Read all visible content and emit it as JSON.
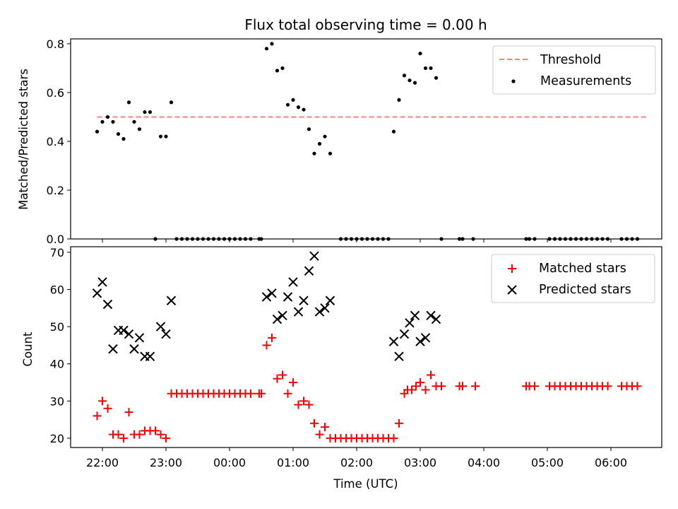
{
  "title": "Flux total observing time = 0.00 h",
  "chart_data": [
    {
      "type": "scatter",
      "ylabel": "Matched/Predicted stars",
      "ylim": [
        0,
        0.82
      ],
      "yticks": [
        0.0,
        0.2,
        0.4,
        0.6,
        0.8
      ],
      "xlim": [
        "21:30",
        "06:48"
      ],
      "legend": "top-right",
      "threshold": {
        "name": "Threshold",
        "value": 0.5,
        "x_range": [
          "21:55",
          "06:35"
        ],
        "color": "#ff7f7f"
      },
      "series": [
        {
          "name": "Measurements",
          "color": "#000000",
          "points": [
            [
              "21:55",
              0.44
            ],
            [
              "22:00",
              0.48
            ],
            [
              "22:05",
              0.5
            ],
            [
              "22:10",
              0.48
            ],
            [
              "22:15",
              0.43
            ],
            [
              "22:20",
              0.41
            ],
            [
              "22:25",
              0.56
            ],
            [
              "22:30",
              0.48
            ],
            [
              "22:35",
              0.45
            ],
            [
              "22:40",
              0.52
            ],
            [
              "22:45",
              0.52
            ],
            [
              "22:55",
              0.42
            ],
            [
              "23:00",
              0.42
            ],
            [
              "23:05",
              0.56
            ],
            [
              "22:50",
              0.0
            ],
            [
              "23:10",
              0.0
            ],
            [
              "23:15",
              0.0
            ],
            [
              "23:20",
              0.0
            ],
            [
              "23:25",
              0.0
            ],
            [
              "23:30",
              0.0
            ],
            [
              "23:35",
              0.0
            ],
            [
              "23:40",
              0.0
            ],
            [
              "23:45",
              0.0
            ],
            [
              "23:50",
              0.0
            ],
            [
              "23:55",
              0.0
            ],
            [
              "00:00",
              0.0
            ],
            [
              "00:05",
              0.0
            ],
            [
              "00:10",
              0.0
            ],
            [
              "00:15",
              0.0
            ],
            [
              "00:20",
              0.0
            ],
            [
              "00:28",
              0.0
            ],
            [
              "00:30",
              0.0
            ],
            [
              "00:35",
              0.78
            ],
            [
              "00:40",
              0.8
            ],
            [
              "00:45",
              0.69
            ],
            [
              "00:50",
              0.7
            ],
            [
              "00:55",
              0.55
            ],
            [
              "01:00",
              0.57
            ],
            [
              "01:05",
              0.54
            ],
            [
              "01:10",
              0.53
            ],
            [
              "01:15",
              0.45
            ],
            [
              "01:20",
              0.35
            ],
            [
              "01:25",
              0.39
            ],
            [
              "01:30",
              0.42
            ],
            [
              "01:35",
              0.35
            ],
            [
              "01:45",
              0.0
            ],
            [
              "01:50",
              0.0
            ],
            [
              "01:55",
              0.0
            ],
            [
              "02:00",
              0.0
            ],
            [
              "02:05",
              0.0
            ],
            [
              "02:10",
              0.0
            ],
            [
              "02:15",
              0.0
            ],
            [
              "02:20",
              0.0
            ],
            [
              "02:25",
              0.0
            ],
            [
              "02:30",
              0.0
            ],
            [
              "02:35",
              0.44
            ],
            [
              "02:40",
              0.57
            ],
            [
              "02:45",
              0.67
            ],
            [
              "02:50",
              0.65
            ],
            [
              "02:55",
              0.64
            ],
            [
              "03:00",
              0.76
            ],
            [
              "03:05",
              0.7
            ],
            [
              "03:10",
              0.7
            ],
            [
              "03:15",
              0.66
            ],
            [
              "03:20",
              0.0
            ],
            [
              "03:37",
              0.0
            ],
            [
              "03:40",
              0.0
            ],
            [
              "03:50",
              0.0
            ],
            [
              "04:40",
              0.0
            ],
            [
              "04:43",
              0.0
            ],
            [
              "04:48",
              0.0
            ],
            [
              "05:02",
              0.0
            ],
            [
              "05:07",
              0.0
            ],
            [
              "05:12",
              0.0
            ],
            [
              "05:17",
              0.0
            ],
            [
              "05:22",
              0.0
            ],
            [
              "05:27",
              0.0
            ],
            [
              "05:32",
              0.0
            ],
            [
              "05:37",
              0.0
            ],
            [
              "05:42",
              0.0
            ],
            [
              "05:47",
              0.0
            ],
            [
              "05:52",
              0.0
            ],
            [
              "05:57",
              0.0
            ],
            [
              "06:10",
              0.0
            ],
            [
              "06:15",
              0.0
            ],
            [
              "06:20",
              0.0
            ],
            [
              "06:25",
              0.0
            ]
          ]
        }
      ]
    },
    {
      "type": "scatter",
      "xlabel": "Time (UTC)",
      "ylabel": "Count",
      "ylim": [
        17.5,
        71.5
      ],
      "yticks": [
        20,
        30,
        40,
        50,
        60,
        70
      ],
      "xlim": [
        "21:30",
        "06:48"
      ],
      "xticks": [
        "22:00",
        "23:00",
        "00:00",
        "01:00",
        "02:00",
        "03:00",
        "04:00",
        "05:00",
        "06:00"
      ],
      "legend": "top-right",
      "series": [
        {
          "name": "Matched stars",
          "marker": "plus",
          "color": "#ff0000",
          "points": [
            [
              "21:55",
              26
            ],
            [
              "22:00",
              30
            ],
            [
              "22:05",
              28
            ],
            [
              "22:10",
              21
            ],
            [
              "22:15",
              21
            ],
            [
              "22:20",
              20
            ],
            [
              "22:25",
              27
            ],
            [
              "22:30",
              21
            ],
            [
              "22:35",
              21
            ],
            [
              "22:40",
              22
            ],
            [
              "22:45",
              22
            ],
            [
              "22:50",
              22
            ],
            [
              "22:55",
              21
            ],
            [
              "23:00",
              20
            ],
            [
              "23:05",
              32
            ],
            [
              "23:10",
              32
            ],
            [
              "23:15",
              32
            ],
            [
              "23:20",
              32
            ],
            [
              "23:25",
              32
            ],
            [
              "23:30",
              32
            ],
            [
              "23:35",
              32
            ],
            [
              "23:40",
              32
            ],
            [
              "23:45",
              32
            ],
            [
              "23:50",
              32
            ],
            [
              "23:55",
              32
            ],
            [
              "00:00",
              32
            ],
            [
              "00:05",
              32
            ],
            [
              "00:10",
              32
            ],
            [
              "00:15",
              32
            ],
            [
              "00:20",
              32
            ],
            [
              "00:28",
              32
            ],
            [
              "00:30",
              32
            ],
            [
              "00:35",
              45
            ],
            [
              "00:40",
              47
            ],
            [
              "00:45",
              36
            ],
            [
              "00:50",
              37
            ],
            [
              "00:55",
              32
            ],
            [
              "01:00",
              35
            ],
            [
              "01:05",
              29
            ],
            [
              "01:10",
              30
            ],
            [
              "01:15",
              29
            ],
            [
              "01:20",
              24
            ],
            [
              "01:25",
              21
            ],
            [
              "01:30",
              23
            ],
            [
              "01:35",
              20
            ],
            [
              "01:40",
              20
            ],
            [
              "01:45",
              20
            ],
            [
              "01:50",
              20
            ],
            [
              "01:55",
              20
            ],
            [
              "02:00",
              20
            ],
            [
              "02:05",
              20
            ],
            [
              "02:10",
              20
            ],
            [
              "02:15",
              20
            ],
            [
              "02:20",
              20
            ],
            [
              "02:25",
              20
            ],
            [
              "02:30",
              20
            ],
            [
              "02:35",
              20
            ],
            [
              "02:40",
              24
            ],
            [
              "02:45",
              32
            ],
            [
              "02:48",
              33
            ],
            [
              "02:52",
              33
            ],
            [
              "02:56",
              34
            ],
            [
              "03:00",
              35
            ],
            [
              "03:05",
              33
            ],
            [
              "03:10",
              37
            ],
            [
              "03:15",
              34
            ],
            [
              "03:20",
              34
            ],
            [
              "03:37",
              34
            ],
            [
              "03:40",
              34
            ],
            [
              "03:52",
              34
            ],
            [
              "04:40",
              34
            ],
            [
              "04:43",
              34
            ],
            [
              "04:48",
              34
            ],
            [
              "05:02",
              34
            ],
            [
              "05:07",
              34
            ],
            [
              "05:12",
              34
            ],
            [
              "05:17",
              34
            ],
            [
              "05:22",
              34
            ],
            [
              "05:27",
              34
            ],
            [
              "05:32",
              34
            ],
            [
              "05:37",
              34
            ],
            [
              "05:42",
              34
            ],
            [
              "05:47",
              34
            ],
            [
              "05:52",
              34
            ],
            [
              "05:57",
              34
            ],
            [
              "06:10",
              34
            ],
            [
              "06:15",
              34
            ],
            [
              "06:20",
              34
            ],
            [
              "06:25",
              34
            ]
          ]
        },
        {
          "name": "Predicted stars",
          "marker": "x",
          "color": "#000000",
          "points": [
            [
              "21:55",
              59
            ],
            [
              "22:00",
              62
            ],
            [
              "22:05",
              56
            ],
            [
              "22:10",
              44
            ],
            [
              "22:15",
              49
            ],
            [
              "22:20",
              49
            ],
            [
              "22:25",
              48
            ],
            [
              "22:30",
              44
            ],
            [
              "22:35",
              47
            ],
            [
              "22:40",
              42
            ],
            [
              "22:45",
              42
            ],
            [
              "22:55",
              50
            ],
            [
              "23:00",
              48
            ],
            [
              "23:05",
              57
            ],
            [
              "00:35",
              58
            ],
            [
              "00:40",
              59
            ],
            [
              "00:45",
              52
            ],
            [
              "00:50",
              53
            ],
            [
              "00:55",
              58
            ],
            [
              "01:00",
              62
            ],
            [
              "01:05",
              54
            ],
            [
              "01:10",
              57
            ],
            [
              "01:15",
              65
            ],
            [
              "01:20",
              69
            ],
            [
              "01:25",
              54
            ],
            [
              "01:30",
              55
            ],
            [
              "01:35",
              57
            ],
            [
              "02:35",
              46
            ],
            [
              "02:40",
              42
            ],
            [
              "02:45",
              48
            ],
            [
              "02:50",
              51
            ],
            [
              "02:55",
              53
            ],
            [
              "03:00",
              46
            ],
            [
              "03:05",
              47
            ],
            [
              "03:10",
              53
            ],
            [
              "03:15",
              52
            ]
          ]
        }
      ]
    }
  ]
}
